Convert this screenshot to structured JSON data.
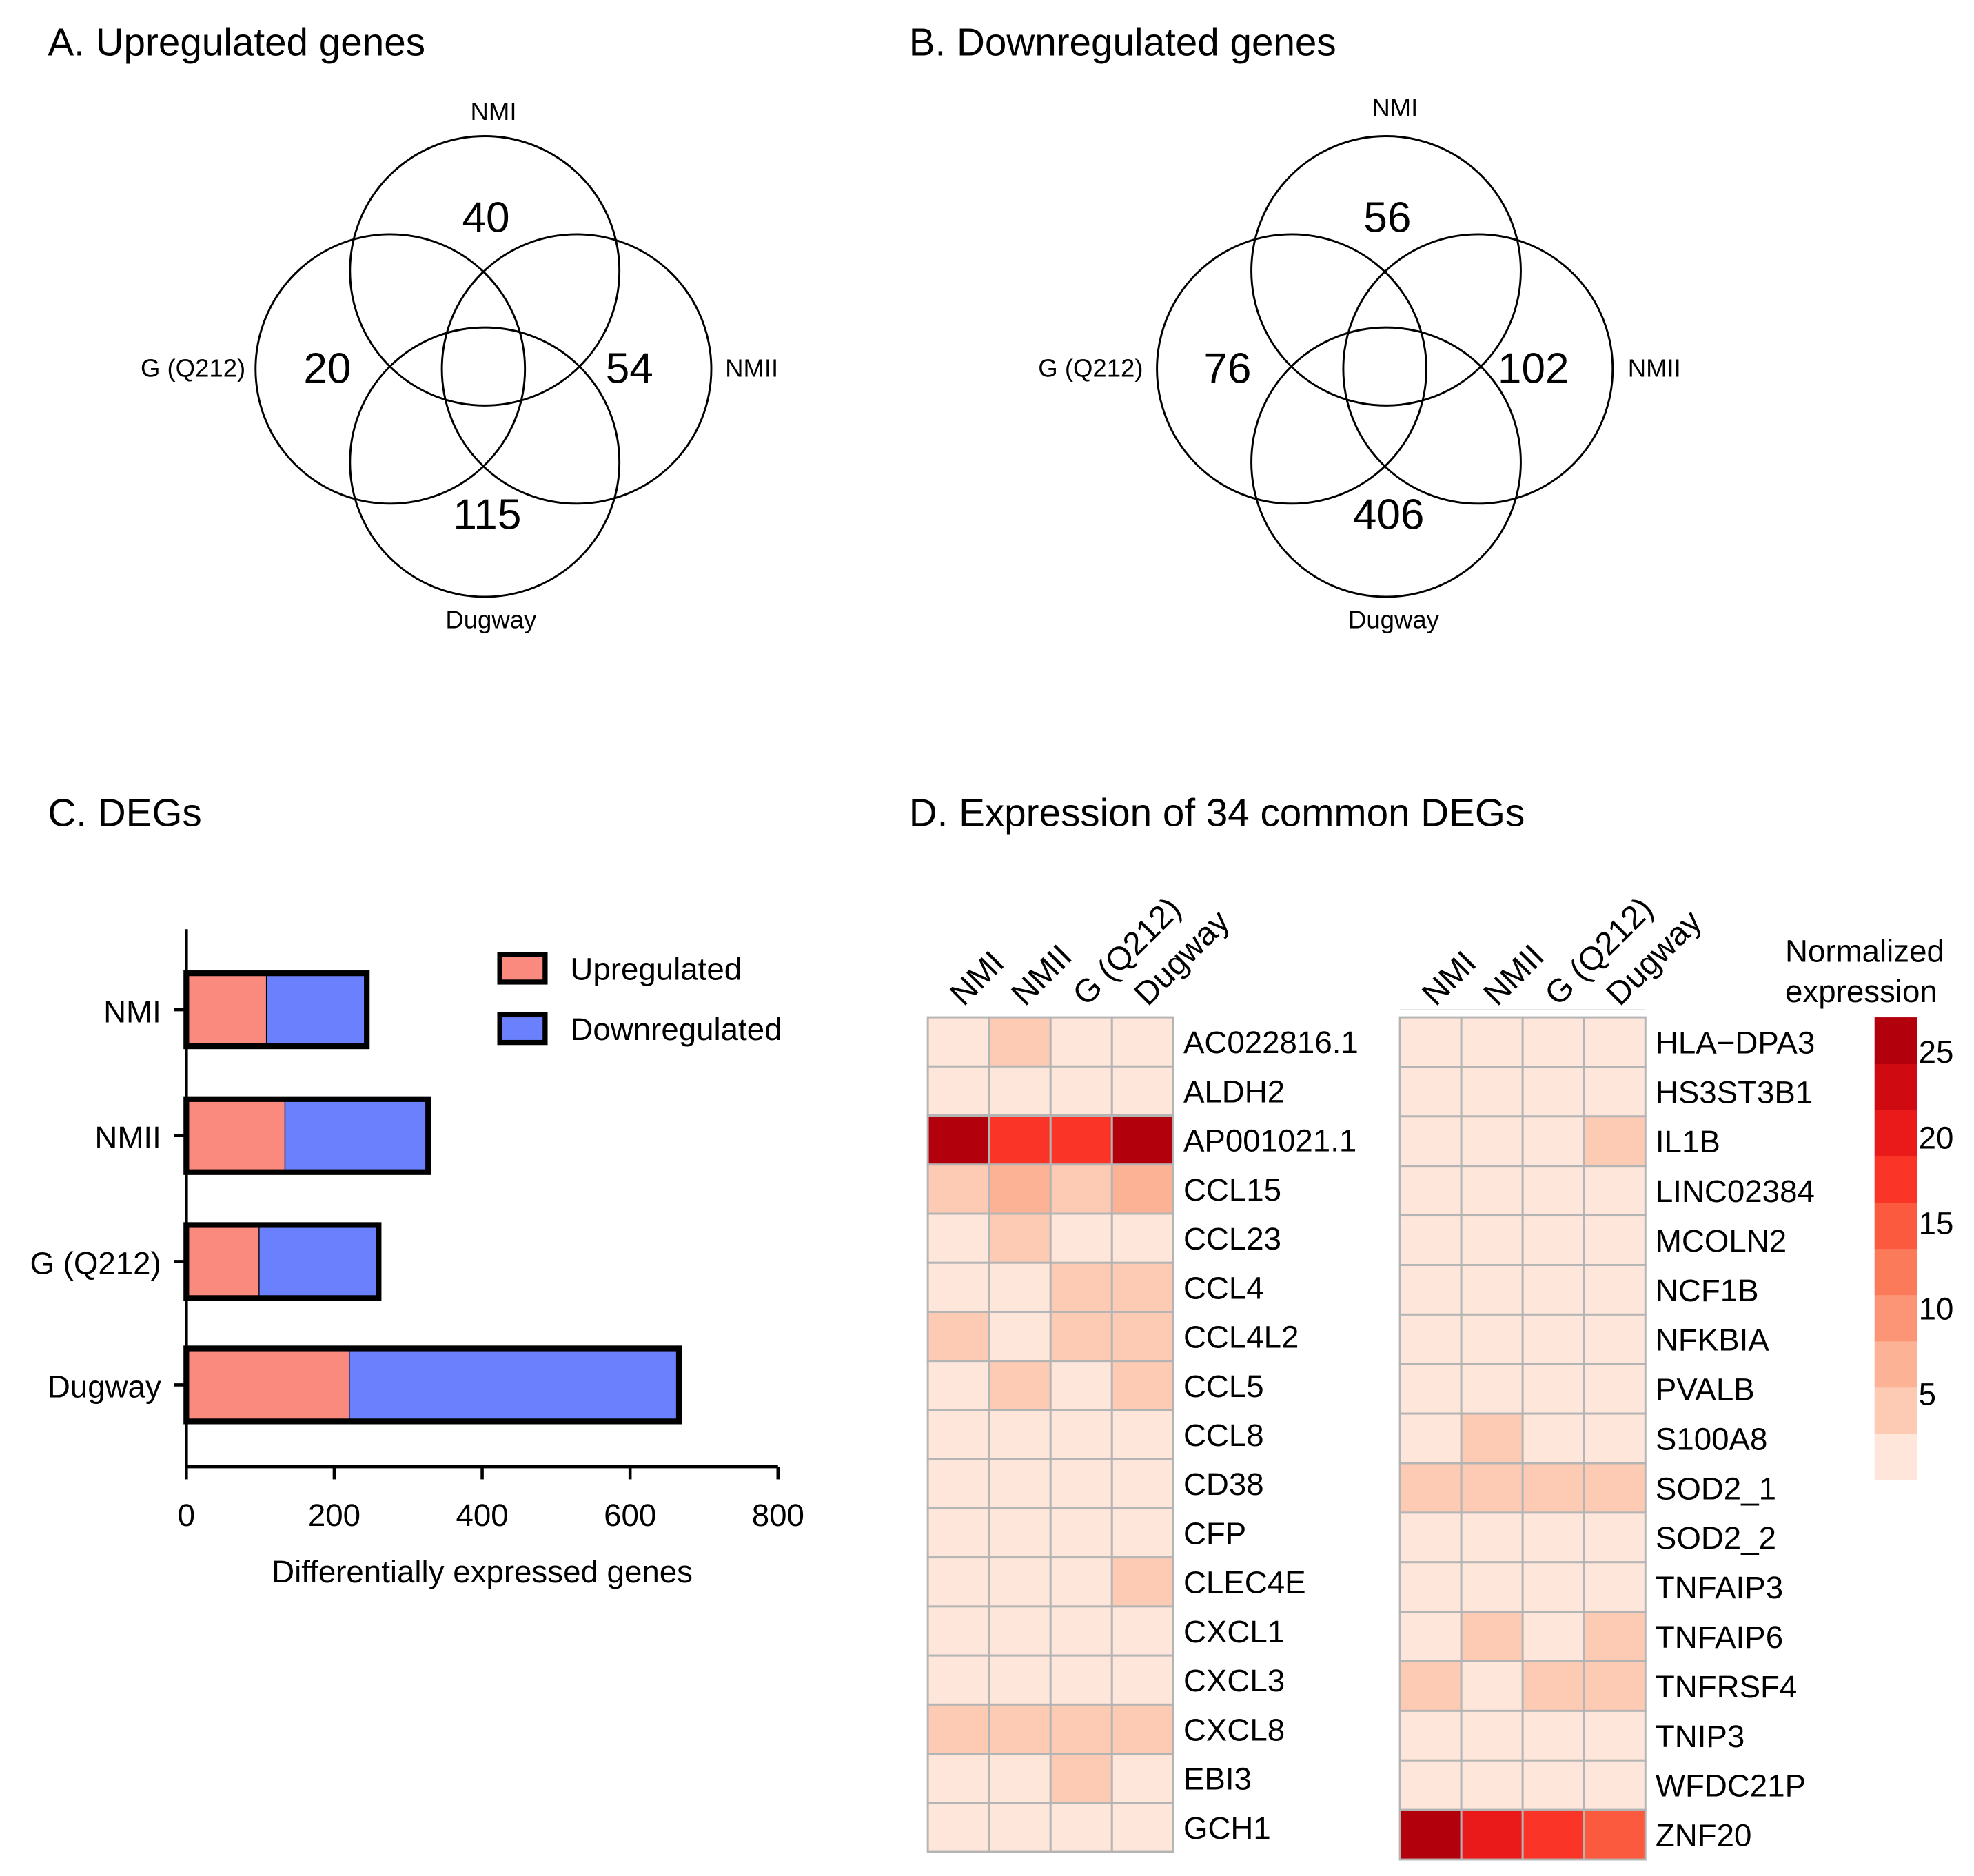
{
  "chart_data": [
    {
      "type": "venn",
      "title": "A. Upregulated genes",
      "sets": [
        "NMI",
        "G (Q212)",
        "NMII",
        "Dugway"
      ],
      "unique_counts": {
        "NMI": "40",
        "G (Q212)": "20",
        "NMII": "54",
        "Dugway": "115"
      }
    },
    {
      "type": "venn",
      "title": "B. Downregulated genes",
      "sets": [
        "NMI",
        "G (Q212)",
        "NMII",
        "Dugway"
      ],
      "unique_counts": {
        "NMI": "56",
        "G (Q212)": "76",
        "NMII": "102",
        "Dugway": "406"
      }
    },
    {
      "type": "bar",
      "orientation": "horizontal",
      "stacked": true,
      "title": "C. DEGs",
      "categories": [
        "NMI",
        "NMII",
        "G (Q212)",
        "Dugway"
      ],
      "series": [
        {
          "name": "Upregulated",
          "color": "#fa8a7e",
          "values": [
            109,
            134,
            99,
            221
          ]
        },
        {
          "name": "Downregulated",
          "color": "#6b80fc",
          "values": [
            135,
            193,
            161,
            445
          ]
        }
      ],
      "xlabel": "Differentially expressed genes",
      "ylabel": "",
      "xlim": [
        0,
        800
      ],
      "xticks": [
        "0",
        "200",
        "400",
        "600",
        "800"
      ],
      "legend": "top-right"
    },
    {
      "type": "heatmap",
      "title": "D. Expression of 34 common DEGs",
      "columns": [
        "NMI",
        "NMII",
        "G (Q212)",
        "Dugway"
      ],
      "panels": [
        {
          "rows": [
            "AC022816.1",
            "ALDH2",
            "AP001021.1",
            "CCL15",
            "CCL23",
            "CCL4",
            "CCL4L2",
            "CCL5",
            "CCL8",
            "CD38",
            "CFP",
            "CLEC4E",
            "CXCL1",
            "CXCL3",
            "CXCL8",
            "EBI3",
            "GCH1"
          ],
          "values": [
            [
              1,
              5,
              1,
              1
            ],
            [
              1,
              1,
              1,
              1
            ],
            [
              27,
              18,
              18,
              27
            ],
            [
              5,
              7,
              5,
              7
            ],
            [
              1,
              5,
              1,
              1
            ],
            [
              1,
              1,
              5,
              5
            ],
            [
              5,
              1,
              5,
              5
            ],
            [
              1,
              5,
              1,
              5
            ],
            [
              1,
              1,
              1,
              1
            ],
            [
              1,
              1,
              1,
              1
            ],
            [
              1,
              1,
              1,
              1
            ],
            [
              1,
              1,
              1,
              5
            ],
            [
              1,
              1,
              1,
              1
            ],
            [
              1,
              1,
              1,
              1
            ],
            [
              5,
              5,
              5,
              5
            ],
            [
              1,
              1,
              5,
              1
            ],
            [
              1,
              1,
              1,
              1
            ]
          ]
        },
        {
          "rows": [
            "HLA−DPA3",
            "HS3ST3B1",
            "IL1B",
            "LINC02384",
            "MCOLN2",
            "NCF1B",
            "NFKBIA",
            "PVALB",
            "S100A8",
            "SOD2_1",
            "SOD2_2",
            "TNFAIP3",
            "TNFAIP6",
            "TNFRSF4",
            "TNIP3",
            "WFDC21P",
            "ZNF20"
          ],
          "values": [
            [
              1,
              1,
              1,
              1
            ],
            [
              1,
              1,
              1,
              1
            ],
            [
              1,
              1,
              1,
              5
            ],
            [
              1,
              1,
              1,
              1
            ],
            [
              1,
              1,
              1,
              1
            ],
            [
              1,
              1,
              1,
              1
            ],
            [
              1,
              1,
              1,
              1
            ],
            [
              1,
              1,
              1,
              1
            ],
            [
              1,
              5,
              1,
              1
            ],
            [
              5,
              5,
              5,
              5
            ],
            [
              1,
              1,
              1,
              1
            ],
            [
              1,
              1,
              1,
              1
            ],
            [
              1,
              5,
              1,
              5
            ],
            [
              5,
              1,
              5,
              5
            ],
            [
              1,
              1,
              1,
              1
            ],
            [
              1,
              1,
              1,
              1
            ],
            [
              27,
              20,
              18,
              15
            ]
          ]
        }
      ],
      "colorbar": {
        "title_line1": "Normalized",
        "title_line2": "expression",
        "range": [
          0,
          27
        ],
        "ticks": [
          "25",
          "20",
          "15",
          "10",
          "5"
        ],
        "tick_values": [
          25,
          20,
          15,
          10,
          5
        ],
        "colors": [
          "#fee6da",
          "#fdcab4",
          "#fcb294",
          "#fc9576",
          "#fb7a5a",
          "#fb5a3e",
          "#fa3426",
          "#ea1a1a",
          "#cf0a10",
          "#b2000c"
        ]
      }
    }
  ]
}
